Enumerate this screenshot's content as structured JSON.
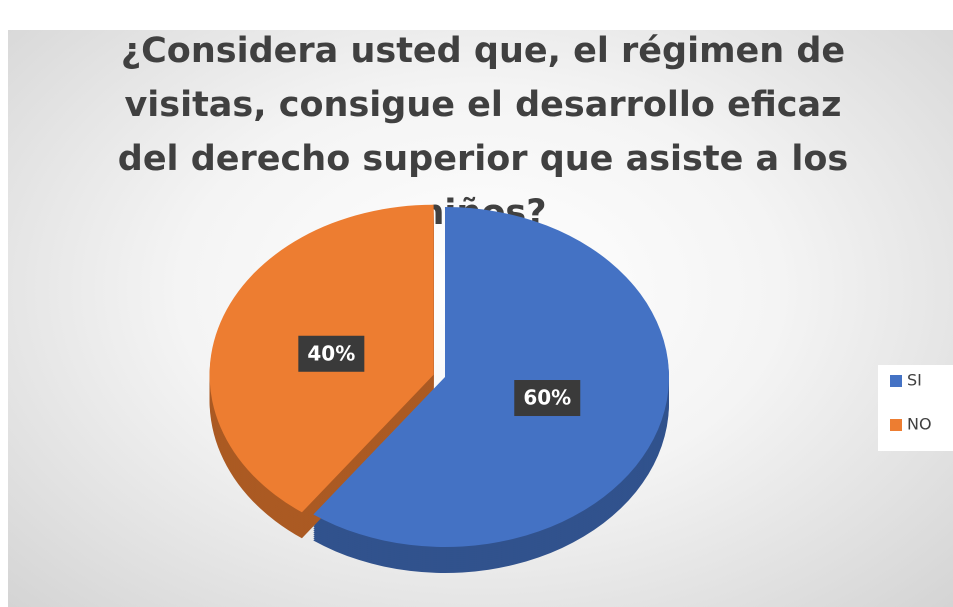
{
  "chart_data": {
    "type": "pie3d",
    "title": "¿Considera usted que, el régimen de visitas, consigue el desarrollo eficaz del derecho superior que asiste a los niños?",
    "categories": [
      "SI",
      "NO"
    ],
    "values": [
      60,
      40
    ],
    "value_labels": [
      "60%",
      "40%"
    ],
    "colors": [
      "#4472c4",
      "#ed7d31"
    ],
    "legend": "right"
  }
}
